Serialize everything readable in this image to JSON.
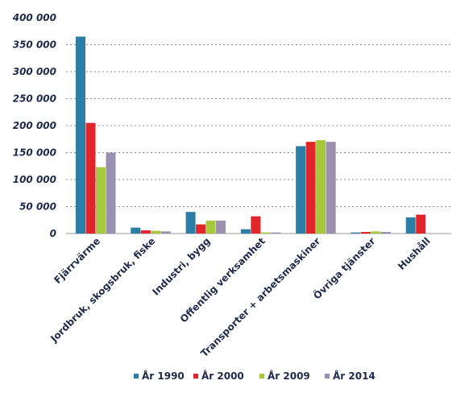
{
  "chart_data": {
    "type": "bar",
    "categories": [
      "Fjärrvärme",
      "Jordbruk, skogsbruk, fiske",
      "Industri, bygg",
      "Offentlig verksamhet",
      "Transporter + arbetsmaskiner",
      "Övriga tjänster",
      "Hushåll"
    ],
    "series": [
      {
        "name": "År 1990",
        "color": "#2b7fa6",
        "values": [
          365000,
          11000,
          40000,
          8000,
          162000,
          2000,
          30000
        ]
      },
      {
        "name": "År 2000",
        "color": "#e0262c",
        "values": [
          205000,
          6000,
          17000,
          32000,
          170000,
          3000,
          35000
        ]
      },
      {
        "name": "År 2009",
        "color": "#a5c93a",
        "values": [
          123000,
          5000,
          24000,
          2000,
          173000,
          4000,
          0
        ]
      },
      {
        "name": "År 2014",
        "color": "#9a90b0",
        "values": [
          150000,
          4000,
          24000,
          2000,
          170000,
          3000,
          0
        ]
      }
    ],
    "yticks": [
      "0",
      "50 000",
      "100 000",
      "150 000",
      "200 000",
      "250 000",
      "300 000",
      "350 000",
      "400 000"
    ],
    "ylim": [
      0,
      400000
    ],
    "grid": true,
    "legend": "bottom"
  }
}
